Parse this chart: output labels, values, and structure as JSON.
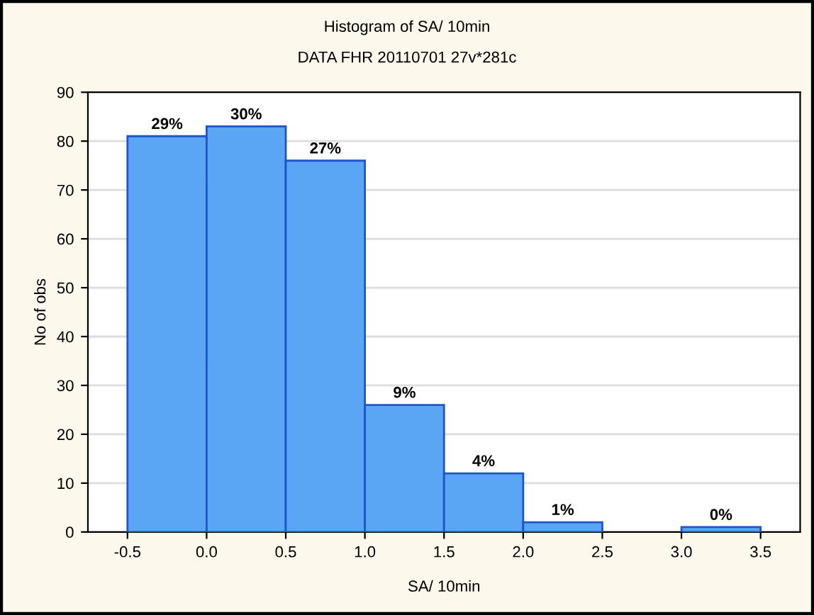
{
  "chart_data": {
    "type": "histogram",
    "title": "Histogram of SA/ 10min",
    "subtitle": "DATA FHR 20110701 27v*281c",
    "xlabel": "SA/ 10min",
    "ylabel": "No of obs",
    "bins": [
      -0.5,
      0.0,
      0.5,
      1.0,
      1.5,
      2.0,
      2.5,
      3.0,
      3.5
    ],
    "values": [
      81,
      83,
      76,
      26,
      12,
      2,
      0,
      1
    ],
    "annotations": [
      {
        "text": "29%",
        "x": -0.25,
        "y": 81
      },
      {
        "text": "30%",
        "x": 0.25,
        "y": 83
      },
      {
        "text": "27%",
        "x": 0.75,
        "y": 76
      },
      {
        "text": "9%",
        "x": 1.25,
        "y": 26
      },
      {
        "text": "4%",
        "x": 1.75,
        "y": 12
      },
      {
        "text": "1%",
        "x": 2.25,
        "y": 2
      },
      {
        "text": "0%",
        "x": 3.25,
        "y": 1
      }
    ],
    "color": "#5aa6f5",
    "xlim": [
      -0.75,
      3.75
    ],
    "xticks": [
      {
        "value": -0.5,
        "label": "-0.5"
      },
      {
        "value": 0.0,
        "label": "0.0"
      },
      {
        "value": 0.5,
        "label": "0.5"
      },
      {
        "value": 1.0,
        "label": "1.0"
      },
      {
        "value": 1.5,
        "label": "1.5"
      },
      {
        "value": 2.0,
        "label": "2.0"
      },
      {
        "value": 2.5,
        "label": "2.5"
      },
      {
        "value": 3.0,
        "label": "3.0"
      },
      {
        "value": 3.5,
        "label": "3.5"
      }
    ],
    "ylim": [
      0,
      90
    ],
    "yticks": [
      0,
      10,
      20,
      30,
      40,
      50,
      60,
      70,
      80,
      90
    ],
    "grid": "y"
  }
}
